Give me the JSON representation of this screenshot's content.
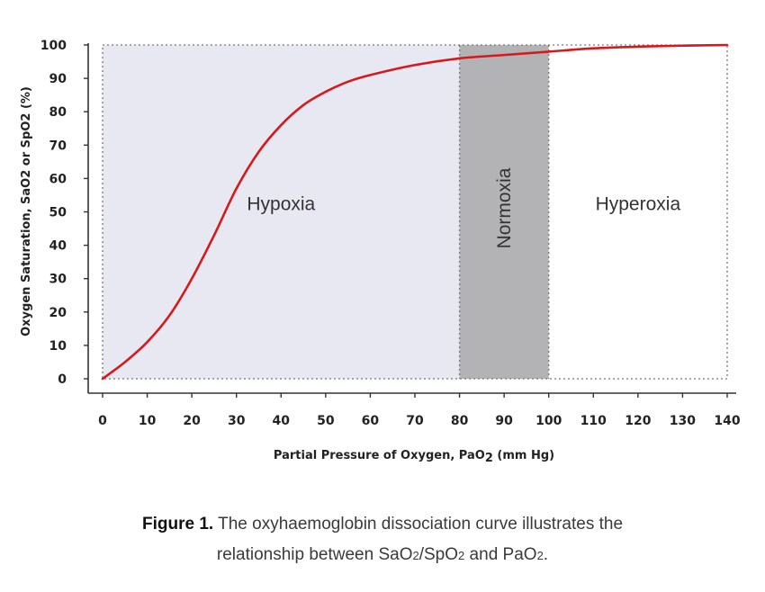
{
  "chart_data": {
    "type": "line",
    "xlabel": "Partial Pressure of Oxygen, PaO",
    "xlabel_sub": "2",
    "xlabel_end": " (mm Hg)",
    "ylabel": "Oxygen Saturation, SaO2 or SpO2 (%)",
    "xlim": [
      0,
      140
    ],
    "ylim": [
      0,
      100
    ],
    "x_ticks": [
      0,
      10,
      20,
      30,
      40,
      50,
      60,
      70,
      80,
      90,
      100,
      110,
      120,
      130,
      140
    ],
    "y_ticks": [
      0,
      10,
      20,
      30,
      40,
      50,
      60,
      70,
      80,
      90,
      100
    ],
    "regions": [
      {
        "label": "Hypoxia",
        "from": 0,
        "to": 80,
        "color": "#e8e8f2",
        "label_orientation": "horizontal"
      },
      {
        "label": "Normoxia",
        "from": 80,
        "to": 100,
        "color": "#b3b3b5",
        "label_orientation": "vertical"
      },
      {
        "label": "Hyperoxia",
        "from": 100,
        "to": 140,
        "color": "#ffffff",
        "label_orientation": "horizontal"
      }
    ],
    "series": [
      {
        "color": "#d7191c",
        "x": [
          0,
          5,
          10,
          15,
          20,
          25,
          30,
          35,
          40,
          45,
          50,
          55,
          60,
          70,
          80,
          90,
          100,
          110,
          120,
          130,
          140
        ],
        "y": [
          0,
          5,
          11,
          19,
          30,
          43,
          57,
          68,
          76,
          82,
          86,
          89,
          91,
          94,
          96,
          97,
          98,
          99,
          99.5,
          99.8,
          100
        ]
      }
    ],
    "grid": false
  },
  "caption": {
    "label": "Figure 1.",
    "line1": " The oxyhaemoglobin dissociation curve illustrates the",
    "line2_a": "relationship between SaO",
    "line2_sub1": "2",
    "line2_b": "/SpO",
    "line2_sub2": "2",
    "line2_c": " and PaO",
    "line2_sub3": "2",
    "line2_d": "."
  }
}
